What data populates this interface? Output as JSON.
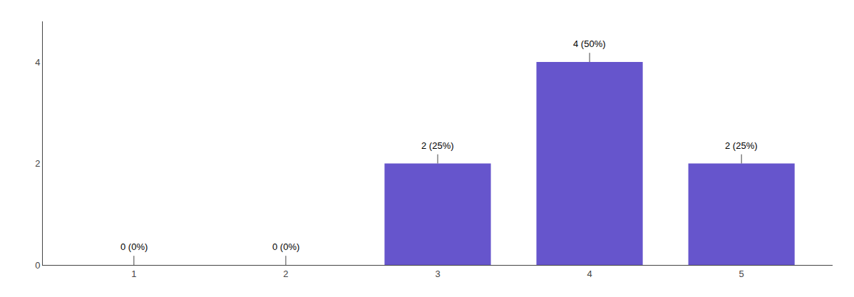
{
  "chart_data": {
    "type": "bar",
    "categories": [
      1,
      2,
      3,
      4,
      5
    ],
    "values": [
      0,
      0,
      2,
      4,
      2
    ],
    "value_labels": [
      "0 (0%)",
      "0 (0%)",
      "2 (25%)",
      "4 (50%)",
      "2 (25%)"
    ],
    "data_labels": true,
    "errors": [
      0.18,
      0.18,
      0.18,
      0.18,
      0.18
    ],
    "color": "#6655cc",
    "xlim": [
      0.4,
      5.6
    ],
    "ylim": [
      0,
      4.8
    ],
    "yticks": [
      0,
      2,
      4
    ],
    "grid": false
  }
}
